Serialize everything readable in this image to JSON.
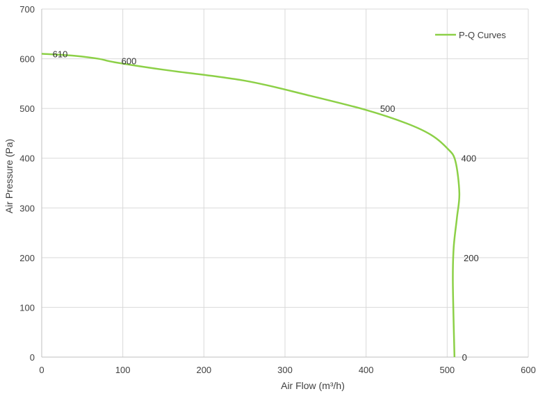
{
  "chart_data": {
    "type": "line",
    "title": "",
    "xlabel": "Air Flow  (m³/h)",
    "ylabel": "Air Pressure  (Pa)",
    "xlim": [
      0,
      600
    ],
    "ylim": [
      0,
      700
    ],
    "xticks": [
      0,
      100,
      200,
      300,
      400,
      500,
      600
    ],
    "yticks": [
      0,
      100,
      200,
      300,
      400,
      500,
      600,
      700
    ],
    "grid": true,
    "legend_position": "top-right",
    "series": [
      {
        "name": "P-Q Curves",
        "color": "#8cd047",
        "x": [
          0,
          40,
          70,
          90,
          150,
          250,
          330,
          400,
          450,
          480,
          500,
          510,
          515,
          512,
          508,
          507,
          509
        ],
        "y": [
          610,
          606,
          600,
          593,
          578,
          556,
          526,
          497,
          470,
          447,
          420,
          395,
          330,
          280,
          220,
          150,
          0
        ],
        "point_labels": [
          {
            "x": 10,
            "y": 610,
            "text": "610"
          },
          {
            "x": 88,
            "y": 596,
            "text": "600"
          },
          {
            "x": 407,
            "y": 500,
            "text": "500"
          },
          {
            "x": 507,
            "y": 400,
            "text": "400"
          },
          {
            "x": 510,
            "y": 200,
            "text": "200"
          },
          {
            "x": 508,
            "y": 0,
            "text": "0"
          }
        ]
      }
    ]
  }
}
